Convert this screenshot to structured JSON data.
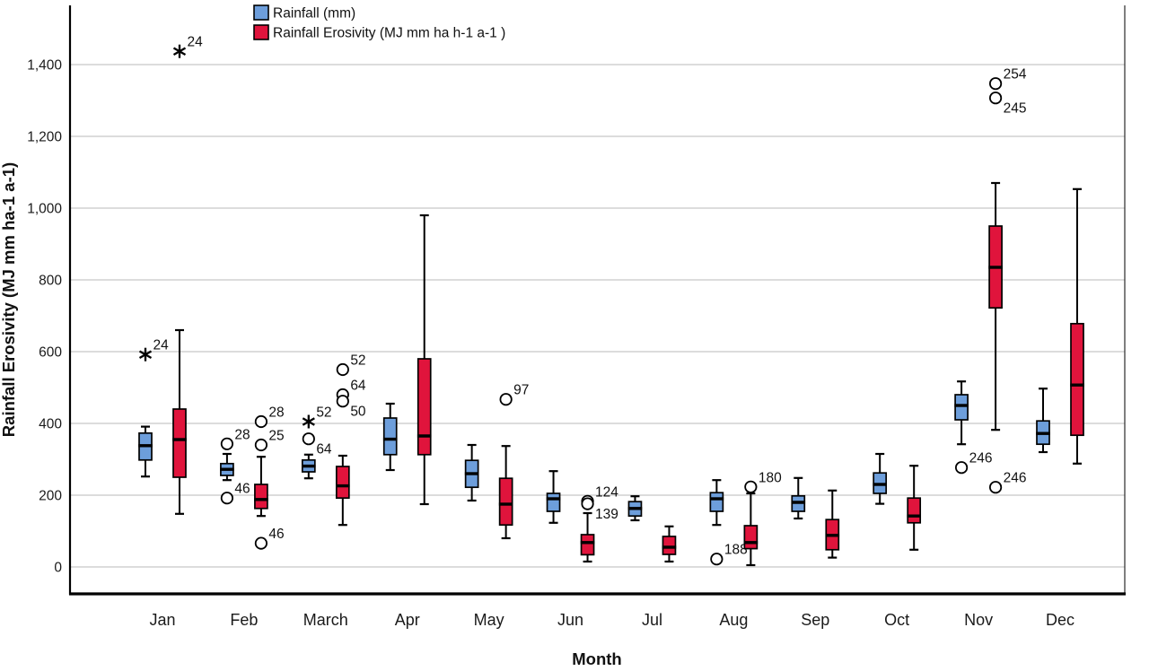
{
  "chart_data": {
    "type": "boxplot",
    "title": "",
    "xlabel": "Month",
    "ylabel": "Rainfall Erosivity (MJ mm ha-1 a-1)",
    "ylim": [
      -75,
      1565
    ],
    "grid": "horizontal",
    "legend_position": "top-inside",
    "categories": [
      "Jan",
      "Feb",
      "March",
      "Apr",
      "May",
      "Jun",
      "Jul",
      "Aug",
      "Sep",
      "Oct",
      "Nov",
      "Dec"
    ],
    "yticks": [
      {
        "value": 0,
        "label": "0"
      },
      {
        "value": 200,
        "label": "200"
      },
      {
        "value": 400,
        "label": "400"
      },
      {
        "value": 600,
        "label": "600"
      },
      {
        "value": 800,
        "label": "800"
      },
      {
        "value": 1000,
        "label": "1,000"
      },
      {
        "value": 1200,
        "label": "1,200"
      },
      {
        "value": 1400,
        "label": "1,400"
      }
    ],
    "series": [
      {
        "key": "rainfall",
        "name": "Rainfall (mm)",
        "color": "#6D9EDB",
        "boxes": [
          {
            "category": "Jan",
            "whisker_low": 252,
            "q1": 298,
            "median": 338,
            "q3": 373,
            "whisker_high": 391,
            "outliers": [
              {
                "label": "24",
                "value": 592,
                "extreme": true,
                "label_pos": "above-right"
              }
            ]
          },
          {
            "category": "Feb",
            "whisker_low": 242,
            "q1": 255,
            "median": 272,
            "q3": 288,
            "whisker_high": 315,
            "outliers": [
              {
                "label": "28",
                "value": 343,
                "extreme": false,
                "label_pos": "above-right"
              },
              {
                "label": "46",
                "value": 192,
                "extreme": false,
                "label_pos": "above-right"
              }
            ]
          },
          {
            "category": "March",
            "whisker_low": 247,
            "q1": 265,
            "median": 281,
            "q3": 298,
            "whisker_high": 313,
            "outliers": [
              {
                "label": "52",
                "value": 405,
                "extreme": true,
                "label_pos": "above-right"
              },
              {
                "label": "64",
                "value": 357,
                "extreme": false,
                "label_pos": "below-right"
              }
            ]
          },
          {
            "category": "Apr",
            "whisker_low": 270,
            "q1": 313,
            "median": 356,
            "q3": 415,
            "whisker_high": 455,
            "outliers": []
          },
          {
            "category": "May",
            "whisker_low": 185,
            "q1": 222,
            "median": 260,
            "q3": 297,
            "whisker_high": 340,
            "outliers": []
          },
          {
            "category": "Jun",
            "whisker_low": 123,
            "q1": 155,
            "median": 190,
            "q3": 205,
            "whisker_high": 267,
            "outliers": []
          },
          {
            "category": "Jul",
            "whisker_low": 130,
            "q1": 142,
            "median": 163,
            "q3": 182,
            "whisker_high": 197,
            "outliers": []
          },
          {
            "category": "Aug",
            "whisker_low": 117,
            "q1": 155,
            "median": 190,
            "q3": 207,
            "whisker_high": 242,
            "outliers": [
              {
                "label": "188",
                "value": 22,
                "extreme": false,
                "label_pos": "above-right"
              }
            ]
          },
          {
            "category": "Sep",
            "whisker_low": 135,
            "q1": 155,
            "median": 180,
            "q3": 198,
            "whisker_high": 248,
            "outliers": []
          },
          {
            "category": "Oct",
            "whisker_low": 176,
            "q1": 205,
            "median": 230,
            "q3": 262,
            "whisker_high": 315,
            "outliers": []
          },
          {
            "category": "Nov",
            "whisker_low": 342,
            "q1": 410,
            "median": 450,
            "q3": 480,
            "whisker_high": 517,
            "outliers": [
              {
                "label": "246",
                "value": 277,
                "extreme": false,
                "label_pos": "above-right"
              }
            ]
          },
          {
            "category": "Dec",
            "whisker_low": 320,
            "q1": 342,
            "median": 372,
            "q3": 407,
            "whisker_high": 497,
            "outliers": []
          }
        ]
      },
      {
        "key": "erosivity",
        "name": "Rainfall Erosivity (MJ mm ha h-1 a-1 )",
        "color": "#E0143C",
        "boxes": [
          {
            "category": "Jan",
            "whisker_low": 148,
            "q1": 250,
            "median": 355,
            "q3": 440,
            "whisker_high": 660,
            "outliers": [
              {
                "label": "24",
                "value": 1437,
                "extreme": true,
                "label_pos": "above-right"
              }
            ]
          },
          {
            "category": "Feb",
            "whisker_low": 142,
            "q1": 163,
            "median": 188,
            "q3": 230,
            "whisker_high": 307,
            "outliers": [
              {
                "label": "28",
                "value": 405,
                "extreme": false,
                "label_pos": "above-right"
              },
              {
                "label": "25",
                "value": 340,
                "extreme": false,
                "label_pos": "above-right"
              },
              {
                "label": "46",
                "value": 66,
                "extreme": false,
                "label_pos": "above-right"
              }
            ]
          },
          {
            "category": "March",
            "whisker_low": 117,
            "q1": 192,
            "median": 226,
            "q3": 280,
            "whisker_high": 310,
            "outliers": [
              {
                "label": "52",
                "value": 550,
                "extreme": false,
                "label_pos": "above-right"
              },
              {
                "label": "64",
                "value": 480,
                "extreme": false,
                "label_pos": "above-right"
              },
              {
                "label": "50",
                "value": 462,
                "extreme": false,
                "label_pos": "below-right"
              }
            ]
          },
          {
            "category": "Apr",
            "whisker_low": 175,
            "q1": 313,
            "median": 365,
            "q3": 580,
            "whisker_high": 980,
            "outliers": []
          },
          {
            "category": "May",
            "whisker_low": 80,
            "q1": 117,
            "median": 175,
            "q3": 247,
            "whisker_high": 337,
            "outliers": [
              {
                "label": "97",
                "value": 467,
                "extreme": false,
                "label_pos": "above-right"
              }
            ]
          },
          {
            "category": "Jun",
            "whisker_low": 15,
            "q1": 34,
            "median": 68,
            "q3": 90,
            "whisker_high": 150,
            "outliers": [
              {
                "label": "124",
                "value": 183,
                "extreme": false,
                "label_pos": "above-right"
              },
              {
                "label": "139",
                "value": 176,
                "extreme": false,
                "label_pos": "below-right"
              }
            ]
          },
          {
            "category": "Jul",
            "whisker_low": 15,
            "q1": 35,
            "median": 55,
            "q3": 85,
            "whisker_high": 113,
            "outliers": []
          },
          {
            "category": "Aug",
            "whisker_low": 5,
            "q1": 51,
            "median": 68,
            "q3": 115,
            "whisker_high": 205,
            "outliers": [
              {
                "label": "180",
                "value": 223,
                "extreme": false,
                "label_pos": "above-right"
              }
            ]
          },
          {
            "category": "Sep",
            "whisker_low": 26,
            "q1": 48,
            "median": 88,
            "q3": 132,
            "whisker_high": 213,
            "outliers": []
          },
          {
            "category": "Oct",
            "whisker_low": 48,
            "q1": 123,
            "median": 142,
            "q3": 192,
            "whisker_high": 282,
            "outliers": []
          },
          {
            "category": "Nov",
            "whisker_low": 382,
            "q1": 722,
            "median": 835,
            "q3": 950,
            "whisker_high": 1070,
            "outliers": [
              {
                "label": "254",
                "value": 1347,
                "extreme": false,
                "label_pos": "above-right"
              },
              {
                "label": "245",
                "value": 1307,
                "extreme": false,
                "label_pos": "below-right"
              },
              {
                "label": "246",
                "value": 222,
                "extreme": false,
                "label_pos": "above-right"
              }
            ]
          },
          {
            "category": "Dec",
            "whisker_low": 288,
            "q1": 367,
            "median": 507,
            "q3": 678,
            "whisker_high": 1053,
            "outliers": []
          }
        ]
      }
    ]
  }
}
